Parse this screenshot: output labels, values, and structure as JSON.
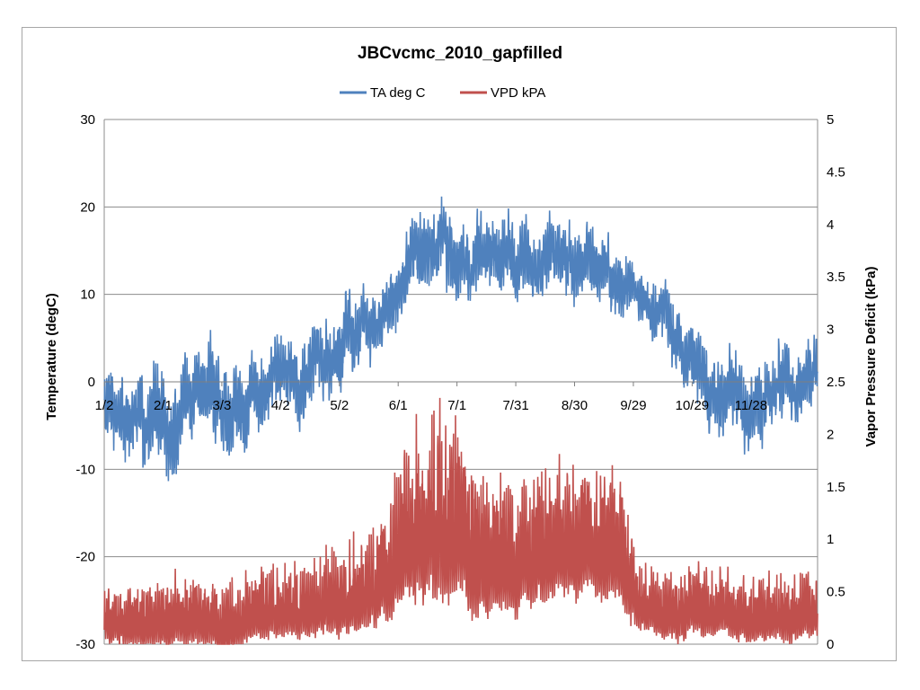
{
  "chart_data": {
    "type": "line",
    "title": "JBCvcmc_2010_gapfilled",
    "xlabel": "",
    "ylabel": "Temperature (degC)",
    "y2label": "Vapor Pressure Deficit (kPa)",
    "ylim": [
      -30,
      30
    ],
    "y2lim": [
      0,
      5
    ],
    "yticks": [
      "30",
      "20",
      "10",
      "0",
      "-10",
      "-20",
      "-30"
    ],
    "y2ticks": [
      "5",
      "4.5",
      "4",
      "3.5",
      "3",
      "2.5",
      "2",
      "1.5",
      "1",
      "0.5",
      "0"
    ],
    "x_tick_labels": [
      "1/2",
      "2/1",
      "3/3",
      "4/2",
      "5/2",
      "6/1",
      "7/1",
      "7/31",
      "8/30",
      "9/29",
      "10/29",
      "11/28"
    ],
    "x_tick_days": [
      1,
      31,
      61,
      91,
      121,
      151,
      181,
      211,
      241,
      271,
      301,
      331
    ],
    "x_range_days": [
      1,
      365
    ],
    "x_label_at_value": 0,
    "grid": true,
    "legend_position": "top",
    "series": [
      {
        "name": "TA deg C",
        "axis": "left",
        "color": "#4f81bd",
        "envelope_day": [
          1,
          15,
          30,
          45,
          60,
          75,
          90,
          105,
          120,
          135,
          150,
          160,
          170,
          180,
          195,
          210,
          225,
          240,
          255,
          265,
          275,
          290,
          305,
          320,
          335,
          350,
          365
        ],
        "envelope_mid": [
          -2,
          -4,
          -5,
          -1,
          -3,
          -2,
          1,
          2,
          4,
          6,
          9,
          15,
          15,
          14,
          15,
          14,
          15,
          14,
          13,
          12,
          9,
          7,
          1,
          -1,
          -3,
          0,
          2
        ],
        "envelope_amp": [
          6,
          6,
          7,
          7,
          7,
          6,
          6,
          6,
          6,
          5,
          5,
          6,
          6,
          6,
          6,
          6,
          5,
          5,
          5,
          5,
          4,
          5,
          6,
          6,
          6,
          6,
          5
        ]
      },
      {
        "name": "VPD kPA",
        "axis": "right",
        "color": "#c0504d",
        "envelope_day": [
          1,
          20,
          40,
          60,
          80,
          100,
          120,
          140,
          160,
          175,
          190,
          205,
          220,
          240,
          255,
          265,
          275,
          285,
          300,
          320,
          340,
          365
        ],
        "envelope_mid": [
          0.2,
          0.2,
          0.25,
          0.15,
          0.3,
          0.35,
          0.4,
          0.5,
          1.1,
          1.2,
          0.8,
          0.7,
          0.9,
          1.0,
          0.9,
          0.8,
          0.35,
          0.3,
          0.35,
          0.3,
          0.25,
          0.3
        ],
        "envelope_amp": [
          0.25,
          0.3,
          0.35,
          0.3,
          0.35,
          0.35,
          0.4,
          0.45,
          0.8,
          0.9,
          0.7,
          0.6,
          0.6,
          0.6,
          0.6,
          0.6,
          0.3,
          0.3,
          0.35,
          0.3,
          0.3,
          0.3
        ]
      }
    ]
  }
}
